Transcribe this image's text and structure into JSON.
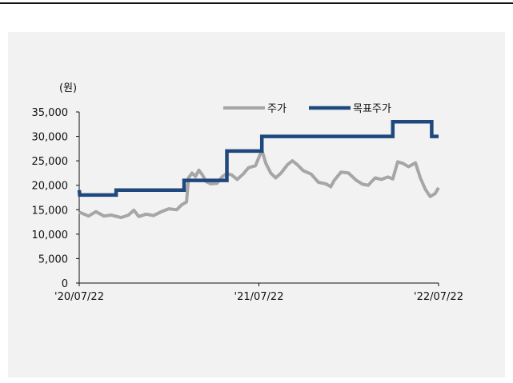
{
  "chart_data": {
    "type": "line",
    "unit_label": "(원)",
    "ylim": [
      0,
      35000
    ],
    "y_ticks": [
      0,
      5000,
      10000,
      15000,
      20000,
      25000,
      30000,
      35000
    ],
    "y_tick_labels": [
      "0",
      "5,000",
      "10,000",
      "15,000",
      "20,000",
      "25,000",
      "30,000",
      "35,000"
    ],
    "xlim": [
      "2020-07-22",
      "2022-07-22"
    ],
    "x_ticks": [
      "2020-07-22",
      "2021-07-22",
      "2022-07-22"
    ],
    "x_tick_labels": [
      "'20/07/22",
      "'21/07/22",
      "'22/07/22"
    ],
    "legend_position": "top-right",
    "series": [
      {
        "name": "주가",
        "color": "#a6a6a6",
        "points": [
          [
            "2020-07-22",
            14500
          ],
          [
            "2020-08-10",
            13700
          ],
          [
            "2020-08-25",
            14600
          ],
          [
            "2020-09-10",
            13700
          ],
          [
            "2020-09-25",
            13900
          ],
          [
            "2020-10-15",
            13400
          ],
          [
            "2020-10-30",
            13900
          ],
          [
            "2020-11-10",
            14900
          ],
          [
            "2020-11-20",
            13600
          ],
          [
            "2020-12-05",
            14100
          ],
          [
            "2020-12-20",
            13800
          ],
          [
            "2021-01-05",
            14600
          ],
          [
            "2021-01-20",
            15200
          ],
          [
            "2021-02-05",
            15000
          ],
          [
            "2021-02-15",
            16000
          ],
          [
            "2021-02-25",
            16600
          ],
          [
            "2021-03-01",
            21500
          ],
          [
            "2021-03-08",
            22500
          ],
          [
            "2021-03-15",
            21800
          ],
          [
            "2021-03-22",
            23100
          ],
          [
            "2021-03-30",
            22000
          ],
          [
            "2021-04-05",
            20800
          ],
          [
            "2021-04-15",
            20300
          ],
          [
            "2021-04-28",
            20400
          ],
          [
            "2021-05-08",
            21700
          ],
          [
            "2021-05-18",
            22400
          ],
          [
            "2021-05-28",
            22100
          ],
          [
            "2021-06-08",
            21200
          ],
          [
            "2021-06-20",
            22300
          ],
          [
            "2021-07-01",
            23600
          ],
          [
            "2021-07-15",
            24000
          ],
          [
            "2021-07-28",
            27200
          ],
          [
            "2021-08-05",
            24500
          ],
          [
            "2021-08-15",
            22500
          ],
          [
            "2021-08-25",
            21500
          ],
          [
            "2021-09-05",
            22500
          ],
          [
            "2021-09-18",
            24200
          ],
          [
            "2021-09-28",
            25000
          ],
          [
            "2021-10-08",
            24200
          ],
          [
            "2021-10-20",
            23000
          ],
          [
            "2021-11-05",
            22300
          ],
          [
            "2021-11-20",
            20600
          ],
          [
            "2021-12-05",
            20300
          ],
          [
            "2021-12-15",
            19700
          ],
          [
            "2021-12-22",
            21000
          ],
          [
            "2022-01-05",
            22700
          ],
          [
            "2022-01-20",
            22500
          ],
          [
            "2022-02-05",
            21000
          ],
          [
            "2022-02-18",
            20200
          ],
          [
            "2022-03-01",
            20000
          ],
          [
            "2022-03-15",
            21500
          ],
          [
            "2022-03-28",
            21200
          ],
          [
            "2022-04-10",
            21700
          ],
          [
            "2022-04-20",
            21300
          ],
          [
            "2022-04-30",
            24800
          ],
          [
            "2022-05-10",
            24500
          ],
          [
            "2022-05-22",
            23800
          ],
          [
            "2022-06-05",
            24600
          ],
          [
            "2022-06-15",
            21500
          ],
          [
            "2022-06-25",
            19200
          ],
          [
            "2022-07-05",
            17700
          ],
          [
            "2022-07-15",
            18300
          ],
          [
            "2022-07-22",
            19500
          ]
        ]
      },
      {
        "name": "목표주가",
        "color": "#1f497d",
        "points": [
          [
            "2020-07-22",
            19000
          ],
          [
            "2020-07-23",
            18000
          ],
          [
            "2020-10-05",
            18000
          ],
          [
            "2020-10-05",
            19000
          ],
          [
            "2021-02-20",
            19000
          ],
          [
            "2021-02-20",
            21000
          ],
          [
            "2021-05-18",
            21000
          ],
          [
            "2021-05-18",
            27000
          ],
          [
            "2021-07-28",
            27000
          ],
          [
            "2021-07-28",
            30000
          ],
          [
            "2022-04-20",
            30000
          ],
          [
            "2022-04-20",
            33000
          ],
          [
            "2022-07-08",
            33000
          ],
          [
            "2022-07-08",
            30000
          ],
          [
            "2022-07-22",
            30000
          ]
        ]
      }
    ]
  }
}
